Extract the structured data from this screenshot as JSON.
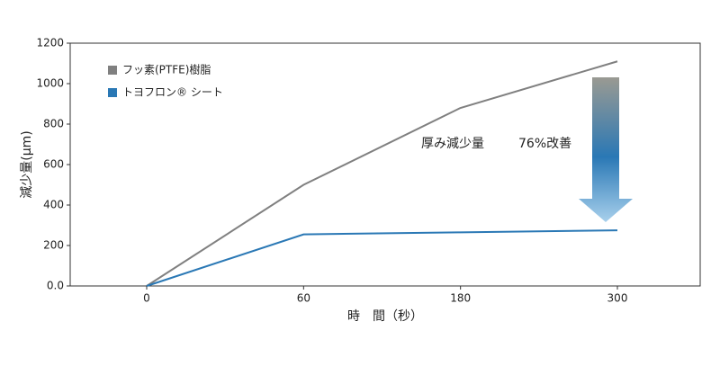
{
  "chart_data": {
    "type": "line",
    "x_label": "時　間（秒）",
    "y_label": "減少量(μm)",
    "categories": [
      "0",
      "60",
      "180",
      "300"
    ],
    "series": [
      {
        "name": "フッ素(PTFE)樹脂",
        "color": "#808080",
        "values": [
          0,
          500,
          880,
          1110
        ]
      },
      {
        "name": "トヨフロン® シート",
        "color": "#2a78b5",
        "values": [
          0,
          255,
          265,
          275
        ]
      }
    ],
    "ylim": [
      0,
      1200
    ],
    "yticks": [
      {
        "value": 0,
        "label": "0.0"
      },
      200,
      400,
      600,
      800,
      1000,
      1200
    ],
    "legend": "upper-left",
    "annotations": [
      "厚み減少量",
      "76%改善"
    ]
  }
}
